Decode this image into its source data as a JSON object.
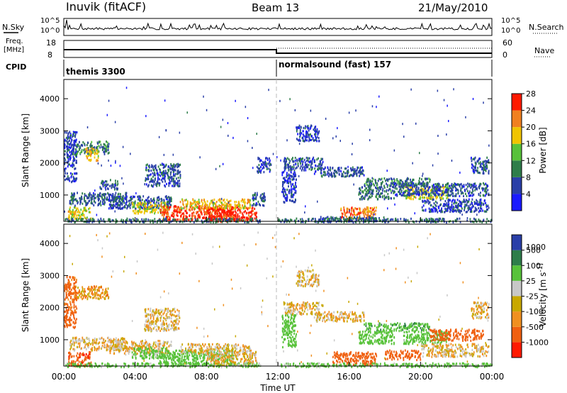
{
  "header": {
    "station": "Inuvik (fitACF)",
    "beam": "Beam 13",
    "date": "21/May/2010"
  },
  "strip_labels": {
    "nsky": "N.Sky",
    "nsky_top": "10^5",
    "nsky_bot": "10^0",
    "nsearch": "N.Search",
    "nsearch_top": "10^5",
    "nsearch_bot": "10^0",
    "freq_line1": "Freq.",
    "freq_line2": "[MHz]",
    "freq_top": "18",
    "freq_bot": "8",
    "nave": "Nave",
    "nave_top": "60",
    "nave_bot": "0",
    "cpid": "CPID",
    "cpid_1": "themis 3300",
    "cpid_2": "normalsound (fast) 157"
  },
  "colors": {
    "power": [
      "#1a1aff",
      "#2a3fa8",
      "#2e7d4a",
      "#58c23a",
      "#f0c400",
      "#f08020",
      "#ff1a00"
    ],
    "velocity": [
      "#ff1a00",
      "#f06010",
      "#f09020",
      "#c8a800",
      "#c8c8c8",
      "#58c23a",
      "#2e7d4a",
      "#2a3fa8"
    ]
  },
  "chart_data": [
    {
      "type": "heatmap",
      "name": "power",
      "ylabel": "Slant Range [km]",
      "yticks": [
        "1000",
        "2000",
        "3000",
        "4000"
      ],
      "ylim": [
        180,
        4600
      ],
      "xlim": [
        0,
        24
      ],
      "colorbar_label": "Power [dB]",
      "colorbar_ticks": [
        "4",
        "8",
        "12",
        "16",
        "20",
        "24",
        "28"
      ],
      "colorbar_range": [
        0,
        30
      ],
      "patches": [
        {
          "t0": 0.2,
          "t1": 1.5,
          "r0": 250,
          "r1": 650,
          "v": 18
        },
        {
          "t0": 0.3,
          "t1": 3.5,
          "r0": 700,
          "r1": 1100,
          "v": 8
        },
        {
          "t0": 0.5,
          "t1": 2.5,
          "r0": 2300,
          "r1": 2700,
          "v": 10
        },
        {
          "t0": 1.2,
          "t1": 1.9,
          "r0": 2100,
          "r1": 2500,
          "v": 20
        },
        {
          "t0": 0.0,
          "t1": 0.7,
          "r0": 1400,
          "r1": 3000,
          "v": 6
        },
        {
          "t0": 4.5,
          "t1": 6.5,
          "r0": 1300,
          "r1": 2000,
          "v": 7
        },
        {
          "t0": 2.5,
          "t1": 6.0,
          "r0": 600,
          "r1": 1000,
          "v": 7
        },
        {
          "t0": 3.8,
          "t1": 5.8,
          "r0": 450,
          "r1": 800,
          "v": 18
        },
        {
          "t0": 5.3,
          "t1": 9.5,
          "r0": 250,
          "r1": 700,
          "v": 27
        },
        {
          "t0": 8.0,
          "t1": 10.8,
          "r0": 200,
          "r1": 650,
          "v": 29
        },
        {
          "t0": 6.5,
          "t1": 10.5,
          "r0": 600,
          "r1": 900,
          "v": 20
        },
        {
          "t0": 10.5,
          "t1": 11.3,
          "r0": 700,
          "r1": 1100,
          "v": 7
        },
        {
          "t0": 10.8,
          "t1": 11.6,
          "r0": 1700,
          "r1": 2200,
          "v": 6
        },
        {
          "t0": 12.3,
          "t1": 14.5,
          "r0": 1800,
          "r1": 2200,
          "v": 7
        },
        {
          "t0": 12.2,
          "t1": 13.0,
          "r0": 800,
          "r1": 1800,
          "v": 6
        },
        {
          "t0": 13.0,
          "t1": 14.3,
          "r0": 2700,
          "r1": 3200,
          "v": 6
        },
        {
          "t0": 14.0,
          "t1": 16.8,
          "r0": 1600,
          "r1": 1900,
          "v": 7
        },
        {
          "t0": 16.5,
          "t1": 18.5,
          "r0": 900,
          "r1": 1300,
          "v": 9
        },
        {
          "t0": 16.8,
          "t1": 20.5,
          "r0": 1300,
          "r1": 1550,
          "v": 10
        },
        {
          "t0": 19.0,
          "t1": 21.5,
          "r0": 900,
          "r1": 1300,
          "v": 18
        },
        {
          "t0": 18.5,
          "t1": 23.8,
          "r0": 1000,
          "r1": 1400,
          "v": 7
        },
        {
          "t0": 20.0,
          "t1": 23.8,
          "r0": 500,
          "r1": 900,
          "v": 6
        },
        {
          "t0": 15.5,
          "t1": 17.5,
          "r0": 250,
          "r1": 650,
          "v": 24
        },
        {
          "t0": 14.0,
          "t1": 18.0,
          "r0": 200,
          "r1": 350,
          "v": 8
        },
        {
          "t0": 12.0,
          "t1": 24.0,
          "r0": 180,
          "r1": 300,
          "v": 9
        },
        {
          "t0": 0.0,
          "t1": 11.0,
          "r0": 180,
          "r1": 300,
          "v": 9
        },
        {
          "t0": 22.8,
          "t1": 23.8,
          "r0": 1700,
          "r1": 2200,
          "v": 7
        },
        {
          "t0": 2.0,
          "t1": 3.0,
          "r0": 1200,
          "r1": 1500,
          "v": 8
        }
      ]
    },
    {
      "type": "heatmap",
      "name": "velocity",
      "ylabel": "Slant Range [km]",
      "yticks": [
        "1000",
        "2000",
        "3000",
        "4000"
      ],
      "ylim": [
        180,
        4600
      ],
      "xlim": [
        0,
        24
      ],
      "xlabel": "Time UT",
      "xticks": [
        "00:00",
        "04:00",
        "08:00",
        "12:00",
        "16:00",
        "20:00",
        "00:00"
      ],
      "colorbar_label": "Velocity [m s^-1]",
      "colorbar_ticks": [
        "-1000",
        "-500",
        "-100",
        "-25",
        "25",
        "100",
        "500",
        "1000"
      ],
      "patches": [
        {
          "t0": 0.2,
          "t1": 1.5,
          "r0": 200,
          "r1": 650,
          "v": -400
        },
        {
          "t0": 0.3,
          "t1": 3.5,
          "r0": 700,
          "r1": 1100,
          "v": 0
        },
        {
          "t0": 0.5,
          "t1": 2.5,
          "r0": 2300,
          "r1": 2700,
          "v": -50
        },
        {
          "t0": 0.0,
          "t1": 0.7,
          "r0": 1400,
          "r1": 3000,
          "v": -150
        },
        {
          "t0": 2.5,
          "t1": 6.0,
          "r0": 600,
          "r1": 1000,
          "v": 0
        },
        {
          "t0": 3.8,
          "t1": 5.8,
          "r0": 450,
          "r1": 800,
          "v": 150
        },
        {
          "t0": 5.3,
          "t1": 9.5,
          "r0": 250,
          "r1": 700,
          "v": 200
        },
        {
          "t0": 8.0,
          "t1": 10.8,
          "r0": 200,
          "r1": 650,
          "v": 0
        },
        {
          "t0": 6.5,
          "t1": 10.5,
          "r0": 600,
          "r1": 900,
          "v": 0
        },
        {
          "t0": 4.5,
          "t1": 6.5,
          "r0": 1300,
          "r1": 2000,
          "v": 0
        },
        {
          "t0": 12.3,
          "t1": 14.5,
          "r0": 1800,
          "r1": 2200,
          "v": 0
        },
        {
          "t0": 12.2,
          "t1": 13.0,
          "r0": 800,
          "r1": 1800,
          "v": 200
        },
        {
          "t0": 13.0,
          "t1": 14.3,
          "r0": 2700,
          "r1": 3200,
          "v": 0
        },
        {
          "t0": 14.0,
          "t1": 16.8,
          "r0": 1600,
          "r1": 1900,
          "v": 0
        },
        {
          "t0": 16.5,
          "t1": 18.5,
          "r0": 900,
          "r1": 1300,
          "v": 300
        },
        {
          "t0": 16.8,
          "t1": 20.5,
          "r0": 1300,
          "r1": 1550,
          "v": 400
        },
        {
          "t0": 19.0,
          "t1": 21.5,
          "r0": 900,
          "r1": 1300,
          "v": 200
        },
        {
          "t0": 20.5,
          "t1": 23.5,
          "r0": 1000,
          "r1": 1350,
          "v": -300
        },
        {
          "t0": 20.0,
          "t1": 23.8,
          "r0": 500,
          "r1": 900,
          "v": 0
        },
        {
          "t0": 15.0,
          "t1": 17.5,
          "r0": 250,
          "r1": 650,
          "v": -350
        },
        {
          "t0": 18.0,
          "t1": 20.0,
          "r0": 400,
          "r1": 700,
          "v": -200
        },
        {
          "t0": 12.0,
          "t1": 24.0,
          "r0": 180,
          "r1": 300,
          "v": 150
        },
        {
          "t0": 0.0,
          "t1": 11.0,
          "r0": 180,
          "r1": 300,
          "v": 150
        },
        {
          "t0": 22.8,
          "t1": 23.8,
          "r0": 1700,
          "r1": 2200,
          "v": 0
        }
      ]
    }
  ]
}
